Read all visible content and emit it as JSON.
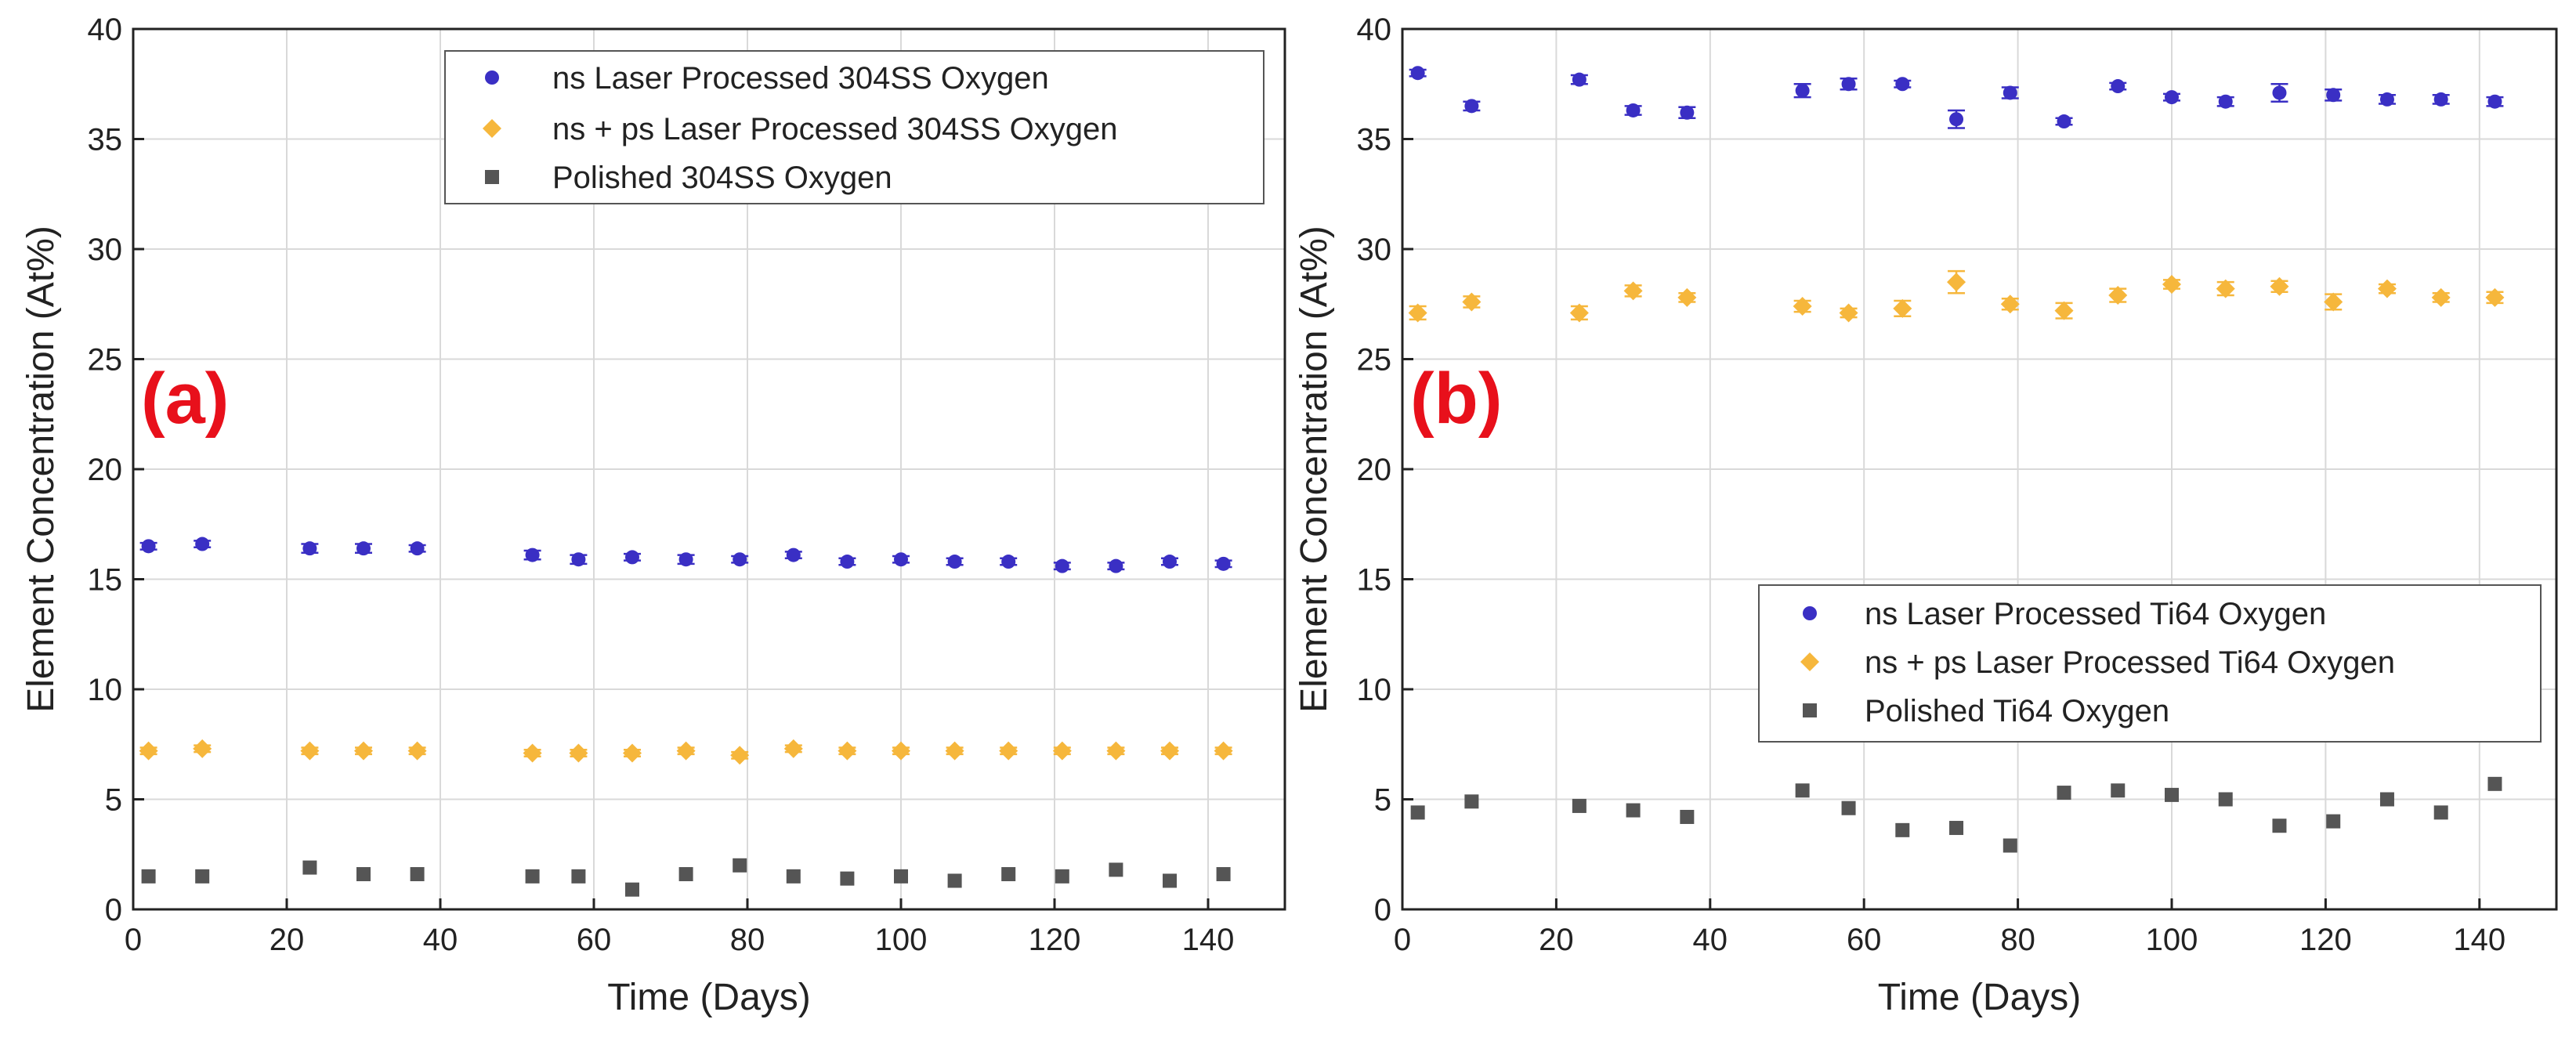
{
  "chart_data": [
    {
      "type": "scatter",
      "panel_label": "(a)",
      "xlabel": "Time (Days)",
      "ylabel": "Element Concentration (At%)",
      "xlim": [
        0,
        150
      ],
      "ylim": [
        0,
        40
      ],
      "xticks": [
        "0",
        "20",
        "40",
        "60",
        "80",
        "100",
        "120",
        "140"
      ],
      "yticks": [
        "0",
        "5",
        "10",
        "15",
        "20",
        "25",
        "30",
        "35",
        "40"
      ],
      "grid": true,
      "legend_position": "top-right",
      "x": [
        2,
        9,
        23,
        30,
        37,
        52,
        58,
        65,
        72,
        79,
        86,
        93,
        100,
        107,
        114,
        121,
        128,
        135,
        142
      ],
      "series": [
        {
          "name": "ns Laser Processed 304SS Oxygen",
          "marker": "circle",
          "color": "#3a2fc4",
          "values": [
            16.5,
            16.6,
            16.4,
            16.4,
            16.4,
            16.1,
            15.9,
            16.0,
            15.9,
            15.9,
            16.1,
            15.8,
            15.9,
            15.8,
            15.8,
            15.6,
            15.6,
            15.8,
            15.7
          ],
          "errors": [
            0.15,
            0.15,
            0.2,
            0.2,
            0.15,
            0.2,
            0.2,
            0.15,
            0.2,
            0.15,
            0.15,
            0.15,
            0.15,
            0.15,
            0.15,
            0.15,
            0.15,
            0.15,
            0.15
          ]
        },
        {
          "name": "ns + ps Laser Processed 304SS Oxygen",
          "marker": "diamond",
          "color": "#f6b73c",
          "values": [
            7.2,
            7.3,
            7.2,
            7.2,
            7.2,
            7.1,
            7.1,
            7.1,
            7.2,
            7.0,
            7.3,
            7.2,
            7.2,
            7.2,
            7.2,
            7.2,
            7.2,
            7.2,
            7.2
          ],
          "errors": [
            0.15,
            0.15,
            0.15,
            0.15,
            0.15,
            0.15,
            0.15,
            0.15,
            0.15,
            0.15,
            0.15,
            0.15,
            0.15,
            0.15,
            0.15,
            0.15,
            0.15,
            0.15,
            0.15
          ]
        },
        {
          "name": "Polished 304SS Oxygen",
          "marker": "square",
          "color": "#555555",
          "values": [
            1.5,
            1.5,
            1.9,
            1.6,
            1.6,
            1.5,
            1.5,
            0.9,
            1.6,
            2.0,
            1.5,
            1.4,
            1.5,
            1.3,
            1.6,
            1.5,
            1.8,
            1.3,
            1.6
          ],
          "errors": [
            0,
            0,
            0,
            0,
            0,
            0,
            0,
            0,
            0,
            0,
            0,
            0,
            0,
            0,
            0,
            0,
            0,
            0,
            0
          ]
        }
      ]
    },
    {
      "type": "scatter",
      "panel_label": "(b)",
      "xlabel": "Time (Days)",
      "ylabel": "Element Concentration (At%)",
      "xlim": [
        0,
        150
      ],
      "ylim": [
        0,
        40
      ],
      "xticks": [
        "0",
        "20",
        "40",
        "60",
        "80",
        "100",
        "120",
        "140"
      ],
      "yticks": [
        "0",
        "5",
        "10",
        "15",
        "20",
        "25",
        "30",
        "35",
        "40"
      ],
      "grid": true,
      "legend_position": "bottom-right",
      "x": [
        2,
        9,
        23,
        30,
        37,
        52,
        58,
        65,
        72,
        79,
        86,
        93,
        100,
        107,
        114,
        121,
        128,
        135,
        142
      ],
      "series": [
        {
          "name": "ns Laser Processed Ti64 Oxygen",
          "marker": "circle",
          "color": "#3a2fc4",
          "values": [
            38.0,
            36.5,
            37.7,
            36.3,
            36.2,
            37.2,
            37.5,
            37.5,
            35.9,
            37.1,
            35.8,
            37.4,
            36.9,
            36.7,
            37.1,
            37.0,
            36.8,
            36.8,
            36.7
          ],
          "errors": [
            0.15,
            0.2,
            0.2,
            0.2,
            0.25,
            0.3,
            0.25,
            0.15,
            0.4,
            0.25,
            0.15,
            0.15,
            0.15,
            0.2,
            0.4,
            0.25,
            0.2,
            0.2,
            0.2
          ]
        },
        {
          "name": "ns + ps Laser Processed Ti64 Oxygen",
          "marker": "diamond",
          "color": "#f6b73c",
          "values": [
            27.1,
            27.6,
            27.1,
            28.1,
            27.8,
            27.4,
            27.1,
            27.3,
            28.5,
            27.5,
            27.2,
            27.9,
            28.4,
            28.2,
            28.3,
            27.6,
            28.2,
            27.8,
            27.8
          ],
          "errors": [
            0.3,
            0.25,
            0.3,
            0.25,
            0.2,
            0.25,
            0.2,
            0.35,
            0.5,
            0.25,
            0.35,
            0.3,
            0.2,
            0.3,
            0.25,
            0.35,
            0.2,
            0.2,
            0.25
          ]
        },
        {
          "name": "Polished Ti64 Oxygen",
          "marker": "square",
          "color": "#555555",
          "values": [
            4.4,
            4.9,
            4.7,
            4.5,
            4.2,
            5.4,
            4.6,
            3.6,
            3.7,
            2.9,
            5.3,
            5.4,
            5.2,
            5.0,
            3.8,
            4.0,
            5.0,
            4.4,
            5.7
          ],
          "errors": [
            0,
            0,
            0,
            0,
            0,
            0,
            0,
            0,
            0,
            0,
            0,
            0,
            0,
            0,
            0,
            0,
            0,
            0,
            0
          ]
        }
      ]
    }
  ]
}
